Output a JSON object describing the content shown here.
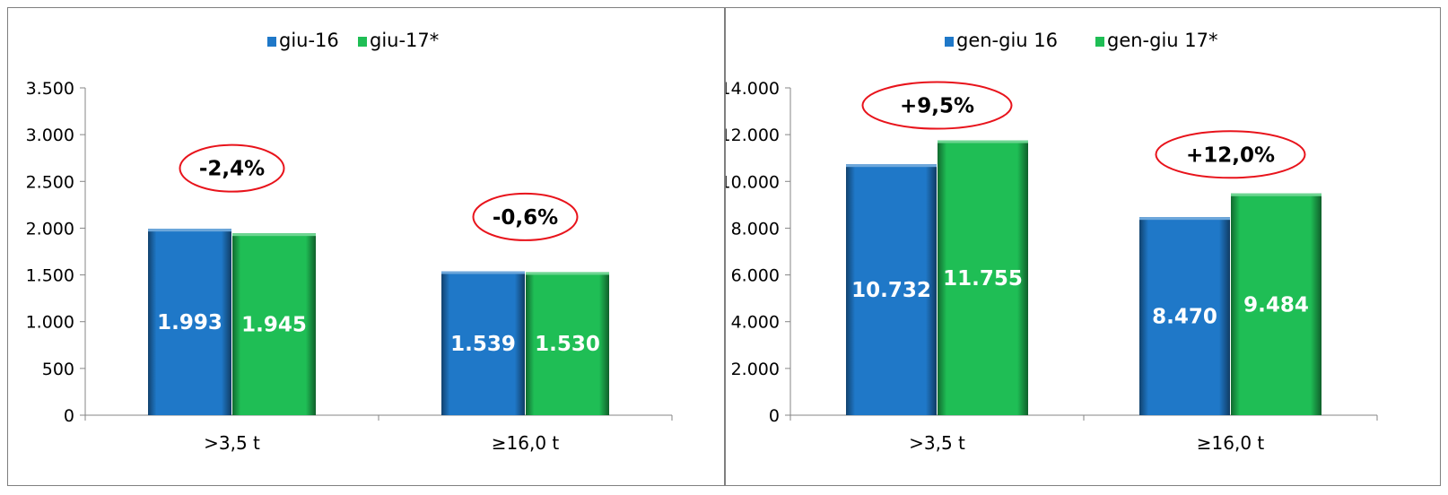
{
  "colors": {
    "series1": "#1f78c8",
    "series2": "#1fbe55",
    "ellipse": "#e8131b"
  },
  "chart_data": [
    {
      "type": "bar",
      "categories": [
        ">3,5 t",
        "≥16,0 t"
      ],
      "series": [
        {
          "name": "giu-16",
          "values": [
            1993,
            1539
          ],
          "labels": [
            "1.993",
            "1.539"
          ]
        },
        {
          "name": "giu-17*",
          "values": [
            1945,
            1530
          ],
          "labels": [
            "1.945",
            "1.530"
          ]
        }
      ],
      "ylim": [
        0,
        3500
      ],
      "yticks": [
        0,
        500,
        1000,
        1500,
        2000,
        2500,
        3000,
        3500
      ],
      "ytick_labels": [
        "0",
        "500",
        "1.000",
        "1.500",
        "2.000",
        "2.500",
        "3.000",
        "3.500"
      ],
      "annotations": [
        {
          "text": "-2,4%",
          "category": 0,
          "y": 2640
        },
        {
          "text": "-0,6%",
          "category": 1,
          "y": 2120
        }
      ],
      "legend": "top-center",
      "grid": false
    },
    {
      "type": "bar",
      "categories": [
        ">3,5 t",
        "≥16,0 t"
      ],
      "series": [
        {
          "name": "gen-giu 16",
          "values": [
            10732,
            8470
          ],
          "labels": [
            "10.732",
            "8.470"
          ]
        },
        {
          "name": "gen-giu 17*",
          "values": [
            11755,
            9484
          ],
          "labels": [
            "11.755",
            "9.484"
          ]
        }
      ],
      "ylim": [
        0,
        14000
      ],
      "yticks": [
        0,
        2000,
        4000,
        6000,
        8000,
        10000,
        12000,
        14000
      ],
      "ytick_labels": [
        "0",
        "2.000",
        "4.000",
        "6.000",
        "8.000",
        "10.000",
        "12.000",
        "14.000"
      ],
      "annotations": [
        {
          "text": "+9,5%",
          "category": 0,
          "y": 13250
        },
        {
          "text": "+12,0%",
          "category": 1,
          "y": 11150
        }
      ],
      "legend": "top-center",
      "grid": false
    }
  ]
}
